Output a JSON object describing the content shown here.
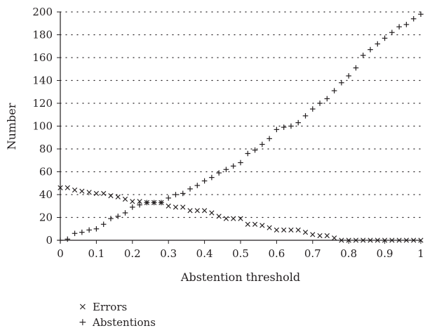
{
  "chart_data": {
    "type": "scatter",
    "title": "",
    "xlabel": "Abstention threshold",
    "ylabel": "Number",
    "xlim": [
      0,
      1
    ],
    "ylim": [
      0,
      200
    ],
    "xticks": [
      0,
      0.1,
      0.2,
      0.3,
      0.4,
      0.5,
      0.6,
      0.7,
      0.8,
      0.9,
      1
    ],
    "xtick_labels": [
      "0",
      "0.1",
      "0.2",
      "0.3",
      "0.4",
      "0.5",
      "0.6",
      "0.7",
      "0.8",
      "0.9",
      "1"
    ],
    "yticks": [
      0,
      20,
      40,
      60,
      80,
      100,
      120,
      140,
      160,
      180,
      200
    ],
    "ytick_labels": [
      "0",
      "20",
      "40",
      "60",
      "80",
      "100",
      "120",
      "140",
      "160",
      "180",
      "200"
    ],
    "grid": "horizontal dotted",
    "legend_position": "bottom-left",
    "x": [
      0.0,
      0.02,
      0.04,
      0.06,
      0.08,
      0.1,
      0.12,
      0.14,
      0.16,
      0.18,
      0.2,
      0.22,
      0.24,
      0.26,
      0.28,
      0.3,
      0.32,
      0.34,
      0.36,
      0.38,
      0.4,
      0.42,
      0.44,
      0.46,
      0.48,
      0.5,
      0.52,
      0.54,
      0.56,
      0.58,
      0.6,
      0.62,
      0.64,
      0.66,
      0.68,
      0.7,
      0.72,
      0.74,
      0.76,
      0.78,
      0.8,
      0.82,
      0.84,
      0.86,
      0.88,
      0.9,
      0.92,
      0.94,
      0.96,
      0.98,
      1.0
    ],
    "series": [
      {
        "name": "Errors",
        "marker": "x",
        "values": [
          46,
          46,
          44,
          43,
          42,
          41,
          41,
          39,
          38,
          36,
          34,
          34,
          33,
          33,
          33,
          30,
          29,
          29,
          26,
          26,
          26,
          24,
          21,
          19,
          19,
          19,
          14,
          14,
          13,
          11,
          9,
          9,
          9,
          9,
          7,
          5,
          4,
          4,
          2,
          0,
          0,
          0,
          0,
          0,
          0,
          0,
          0,
          0,
          0,
          0,
          0
        ]
      },
      {
        "name": "Abstentions",
        "marker": "+",
        "values": [
          0,
          1,
          6,
          7,
          9,
          10,
          14,
          19,
          21,
          24,
          29,
          31,
          33,
          33,
          33,
          37,
          40,
          41,
          45,
          48,
          52,
          55,
          59,
          62,
          65,
          68,
          76,
          79,
          84,
          89,
          97,
          99,
          100,
          103,
          109,
          115,
          120,
          124,
          131,
          138,
          144,
          151,
          162,
          167,
          172,
          177,
          182,
          187,
          189,
          194,
          198
        ]
      }
    ]
  },
  "legend": {
    "items": [
      {
        "label": "Errors",
        "symbol": "×"
      },
      {
        "label": "Abstentions",
        "symbol": "+"
      }
    ]
  }
}
